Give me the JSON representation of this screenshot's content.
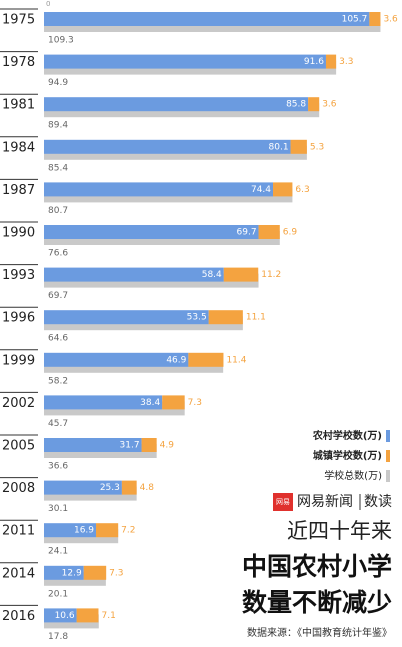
{
  "chart_data": {
    "type": "bar",
    "orientation": "horizontal",
    "title_lines": [
      "近四十年来",
      "中国农村小学",
      "数量不断减少"
    ],
    "brand": "网易新闻",
    "brand_logo": "网易",
    "brand_section": "数读",
    "source": "数据来源：《中国教育统计年鉴》",
    "categories": [
      "1975",
      "1978",
      "1981",
      "1984",
      "1987",
      "1990",
      "1993",
      "1996",
      "1999",
      "2002",
      "2005",
      "2008",
      "2011",
      "2014",
      "2016"
    ],
    "series": [
      {
        "name": "农村学校数(万)",
        "color": "#6b9be0",
        "values": [
          105.7,
          91.6,
          85.8,
          80.1,
          74.4,
          69.7,
          58.4,
          53.5,
          46.9,
          38.4,
          31.7,
          25.3,
          16.9,
          12.9,
          10.6
        ]
      },
      {
        "name": "城镇学校数(万)",
        "color": "#f4a340",
        "values": [
          3.6,
          3.3,
          3.6,
          5.3,
          6.3,
          6.9,
          11.2,
          11.1,
          11.4,
          7.3,
          4.9,
          4.8,
          7.2,
          7.3,
          7.1
        ]
      },
      {
        "name": "学校总数(万)",
        "color": "#c9c9c9",
        "values": [
          109.3,
          94.9,
          89.4,
          85.4,
          80.7,
          76.6,
          69.7,
          64.6,
          58.2,
          45.7,
          36.6,
          30.1,
          24.1,
          20.1,
          17.8
        ]
      }
    ],
    "xlim": [
      0,
      115
    ],
    "xticks": [
      0
    ]
  }
}
